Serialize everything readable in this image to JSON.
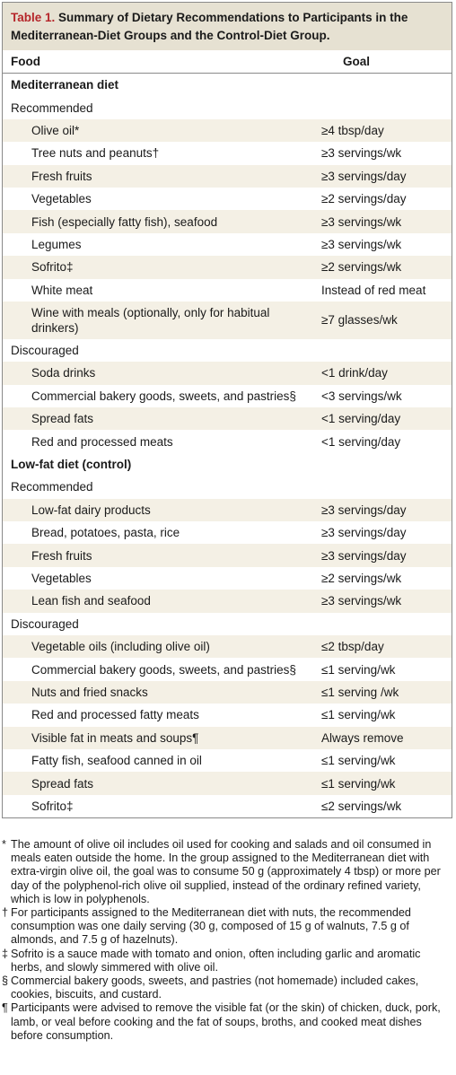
{
  "table": {
    "label": "Table 1.",
    "title": "Summary of Dietary Recommendations to Participants in the Mediterranean-Diet Groups and the Control-Diet Group.",
    "columns": [
      "Food",
      "Goal"
    ],
    "sections": [
      {
        "title": "Mediterranean diet",
        "groups": [
          {
            "title": "Recommended",
            "items": [
              {
                "food": "Olive oil*",
                "goal": "≥4 tbsp/day"
              },
              {
                "food": "Tree nuts and peanuts†",
                "goal": "≥3 servings/wk"
              },
              {
                "food": "Fresh fruits",
                "goal": "≥3 servings/day"
              },
              {
                "food": "Vegetables",
                "goal": "≥2 servings/day"
              },
              {
                "food": "Fish (especially fatty fish), seafood",
                "goal": "≥3 servings/wk"
              },
              {
                "food": "Legumes",
                "goal": "≥3 servings/wk"
              },
              {
                "food": "Sofrito‡",
                "goal": "≥2 servings/wk"
              },
              {
                "food": "White meat",
                "goal": "Instead of red meat"
              },
              {
                "food": "Wine with meals (optionally, only for habitual drinkers)",
                "goal": "≥7 glasses/wk"
              }
            ]
          },
          {
            "title": "Discouraged",
            "items": [
              {
                "food": "Soda drinks",
                "goal": "<1 drink/day"
              },
              {
                "food": "Commercial bakery goods, sweets, and pastries§",
                "goal": "<3 servings/wk"
              },
              {
                "food": "Spread fats",
                "goal": "<1 serving/day"
              },
              {
                "food": "Red and processed meats",
                "goal": "<1 serving/day"
              }
            ]
          }
        ]
      },
      {
        "title": "Low-fat diet (control)",
        "groups": [
          {
            "title": "Recommended",
            "items": [
              {
                "food": "Low-fat dairy products",
                "goal": "≥3 servings/day"
              },
              {
                "food": "Bread, potatoes, pasta, rice",
                "goal": "≥3 servings/day"
              },
              {
                "food": "Fresh fruits",
                "goal": "≥3 servings/day"
              },
              {
                "food": "Vegetables",
                "goal": "≥2 servings/wk"
              },
              {
                "food": "Lean fish and seafood",
                "goal": "≥3 servings/wk"
              }
            ]
          },
          {
            "title": "Discouraged",
            "items": [
              {
                "food": "Vegetable oils (including olive oil)",
                "goal": "≤2 tbsp/day"
              },
              {
                "food": "Commercial bakery goods, sweets, and pastries§",
                "goal": "≤1 serving/wk"
              },
              {
                "food": "Nuts and fried snacks",
                "goal": "≤1 serving /wk"
              },
              {
                "food": "Red and processed fatty meats",
                "goal": "≤1 serving/wk"
              },
              {
                "food": "Visible fat in meats and soups¶",
                "goal": "Always remove"
              },
              {
                "food": "Fatty fish, seafood canned in oil",
                "goal": "≤1 serving/wk"
              },
              {
                "food": "Spread fats",
                "goal": "≤1 serving/wk"
              },
              {
                "food": "Sofrito‡",
                "goal": "≤2 servings/wk"
              }
            ]
          }
        ]
      }
    ]
  },
  "footnotes": [
    {
      "symbol": "*",
      "text": "The amount of olive oil includes oil used for cooking and salads and oil consumed in meals eaten outside the home. In the group assigned to the Mediterranean diet with extra-virgin olive oil, the goal was to consume 50 g (approximately 4 tbsp) or more per day of the polyphenol-rich olive oil supplied, instead of the ordinary refined variety, which is low in polyphenols."
    },
    {
      "symbol": "†",
      "text": "For participants assigned to the Mediterranean diet with nuts, the recommended consumption was one daily serving (30 g, composed of 15 g of walnuts, 7.5 g of almonds, and 7.5 g of hazelnuts)."
    },
    {
      "symbol": "‡",
      "text": "Sofrito is a sauce made with tomato and onion, often including garlic and aromatic herbs, and slowly simmered with olive oil."
    },
    {
      "symbol": "§",
      "text": "Commercial bakery goods, sweets, and pastries (not homemade) included cakes, cookies, biscuits, and custard."
    },
    {
      "symbol": "¶",
      "text": "Participants were advised to remove the visible fat (or the skin) of chicken, duck, pork, lamb, or veal before cooking and the fat of soups, broths, and cooked meat dishes before consumption."
    }
  ]
}
